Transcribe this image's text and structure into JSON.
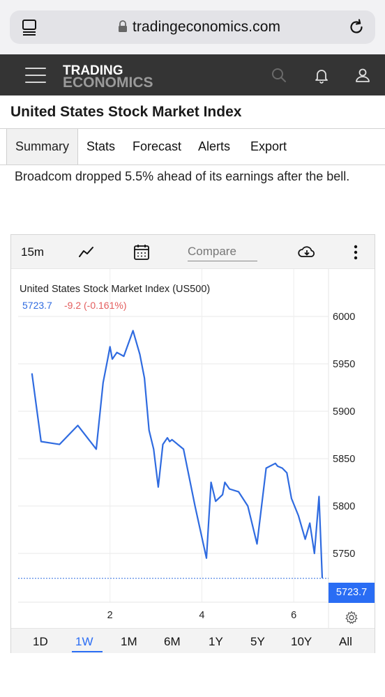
{
  "browser": {
    "url": "tradingeconomics.com"
  },
  "header": {
    "logo_line1": "TRADING",
    "logo_line2": "ECONOMICS",
    "icons": [
      "menu-icon",
      "search-icon",
      "bell-icon",
      "user-icon"
    ]
  },
  "page": {
    "title": "United States Stock Market Index",
    "description": "Broadcom dropped 5.5% ahead of its earnings after the bell."
  },
  "tabs": [
    {
      "label": "Summary",
      "active": true
    },
    {
      "label": "Stats"
    },
    {
      "label": "Forecast"
    },
    {
      "label": "Alerts"
    },
    {
      "label": "Export"
    }
  ],
  "toolbar": {
    "interval": "15m",
    "compare_placeholder": "Compare",
    "icons": [
      "line-chart-icon",
      "calendar-icon",
      "download-icon",
      "more-icon"
    ]
  },
  "chart_header": {
    "title": "United States Stock Market Index (US500)",
    "price": "5723.7",
    "change": "-9.2 (-0.161%)",
    "last_value_label": "5723.7"
  },
  "ranges": [
    "1D",
    "1W",
    "1M",
    "6M",
    "1Y",
    "5Y",
    "10Y",
    "All"
  ],
  "active_range": "1W",
  "colors": {
    "line": "#2f6be0",
    "badge": "#2a6df4",
    "negative": "#e35d5d",
    "header_bg": "#343434"
  },
  "chart_data": {
    "type": "line",
    "series": [
      {
        "name": "US500",
        "x": [
          0.3,
          0.5,
          0.9,
          1.3,
          1.7,
          1.85,
          1.95,
          2.0,
          2.05,
          2.15,
          2.3,
          2.5,
          2.65,
          2.75,
          2.85,
          2.95,
          3.05,
          3.15,
          3.25,
          3.3,
          3.35,
          3.6,
          3.85,
          4.1,
          4.2,
          4.3,
          4.45,
          4.5,
          4.6,
          4.8,
          5.0,
          5.2,
          5.4,
          5.6,
          5.65,
          5.75,
          5.85,
          5.95,
          6.1,
          6.25,
          6.35,
          6.45,
          6.55,
          6.62
        ],
        "y": [
          5940,
          5868,
          5865,
          5885,
          5860,
          5930,
          5955,
          5968,
          5955,
          5962,
          5958,
          5985,
          5960,
          5935,
          5880,
          5860,
          5820,
          5865,
          5872,
          5868,
          5870,
          5860,
          5800,
          5745,
          5825,
          5805,
          5812,
          5825,
          5818,
          5815,
          5800,
          5760,
          5840,
          5845,
          5842,
          5840,
          5835,
          5808,
          5790,
          5765,
          5782,
          5750,
          5810,
          5724
        ]
      }
    ],
    "ylim": [
      5700,
      6010
    ],
    "yticks": [
      5750,
      5800,
      5850,
      5900,
      5950,
      6000
    ],
    "xticks": [
      2,
      4,
      6
    ],
    "grid": true,
    "last_value": 5723.7,
    "title": "United States Stock Market Index (US500)"
  }
}
